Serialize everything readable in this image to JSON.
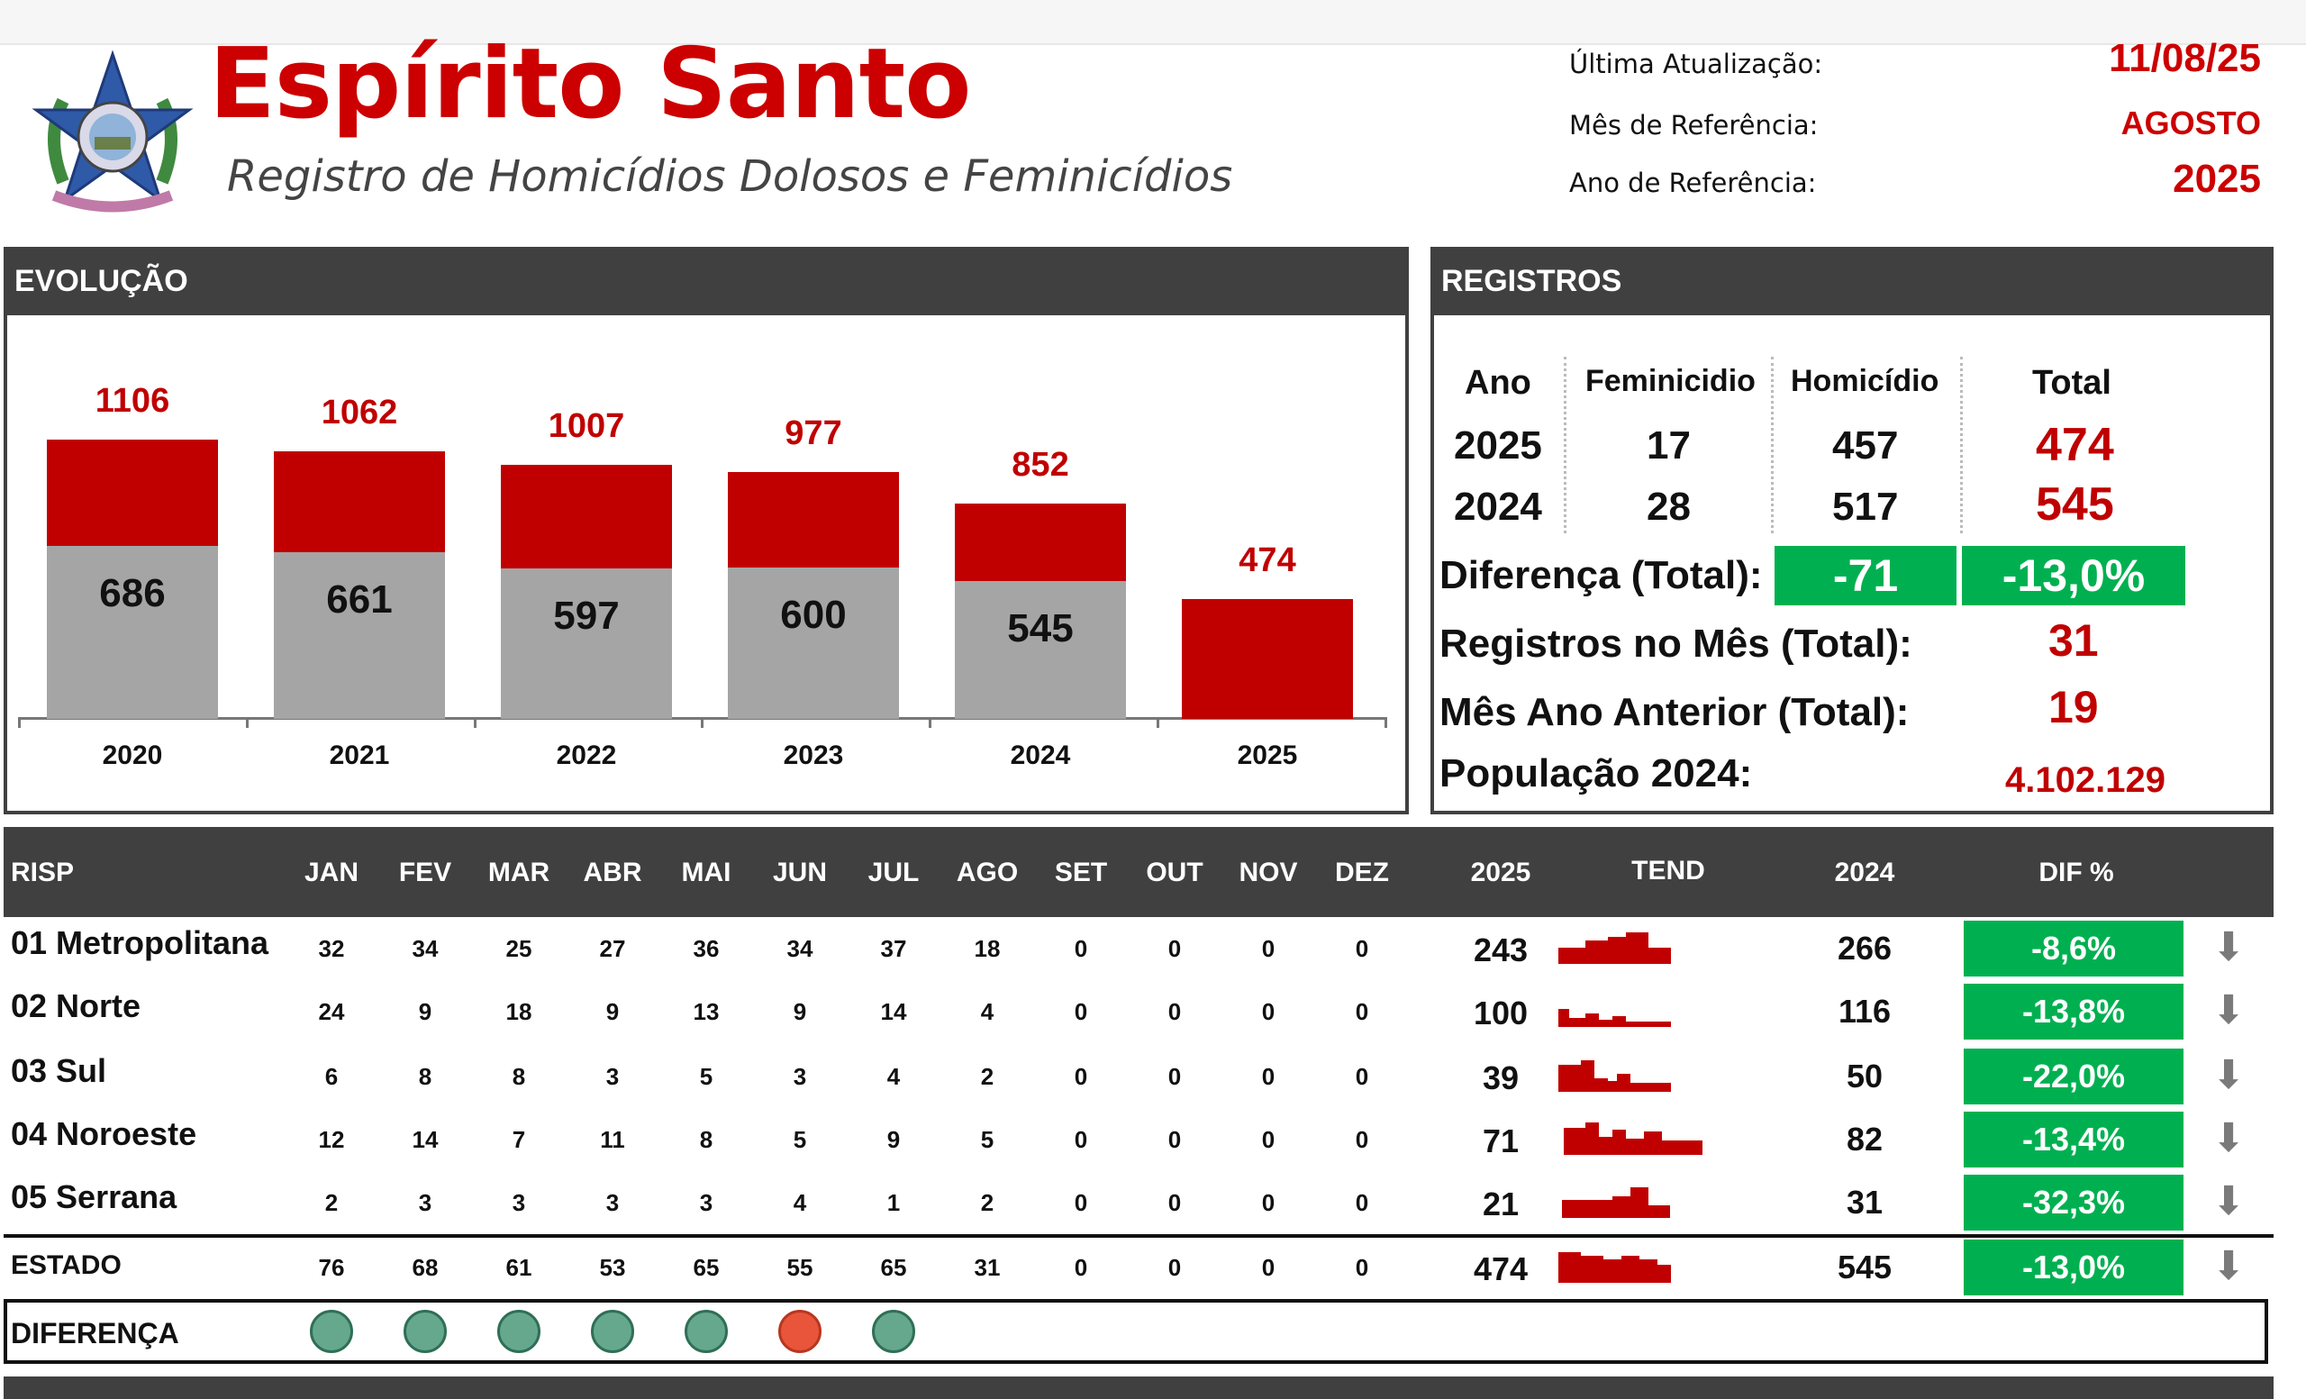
{
  "header": {
    "title": "Espírito Santo",
    "subtitle": "Registro de Homicídios Dolosos e Feminicídios",
    "meta": [
      {
        "label": "Última Atualização:",
        "value": "11/08/25"
      },
      {
        "label": "Mês de Referência:",
        "value": "AGOSTO"
      },
      {
        "label": "Ano de Referência:",
        "value": "2025"
      }
    ]
  },
  "evolucao": {
    "heading": "EVOLUÇÃO"
  },
  "chart_data": {
    "type": "bar",
    "stacked": true,
    "categories": [
      "2020",
      "2021",
      "2022",
      "2023",
      "2024",
      "2025"
    ],
    "series": [
      {
        "values": [
          686,
          661,
          597,
          600,
          545,
          null
        ],
        "color": "#a5a5a5"
      },
      {
        "values": [
          420,
          401,
          410,
          377,
          307,
          474
        ],
        "color": "#c00000"
      }
    ],
    "totals": [
      1106,
      1062,
      1007,
      977,
      852,
      474
    ],
    "inner_labels": [
      "686",
      "661",
      "597",
      "600",
      "545",
      ""
    ],
    "total_labels": [
      "1106",
      "1062",
      "1007",
      "977",
      "852",
      "474"
    ],
    "ylim": [
      0,
      1300
    ],
    "grid": false,
    "title": "",
    "xlabel": "",
    "ylabel": ""
  },
  "registros": {
    "heading": "REGISTROS",
    "columns": [
      "Ano",
      "Feminicidio",
      "Homicídio",
      "Total"
    ],
    "rows": [
      {
        "ano": "2025",
        "fem": "17",
        "hom": "457",
        "total": "474"
      },
      {
        "ano": "2024",
        "fem": "28",
        "hom": "517",
        "total": "545"
      }
    ],
    "diff_label": "Diferença (Total):",
    "diff_abs": "-71",
    "diff_pct": "-13,0%",
    "mes_label": "Registros no Mês (Total):",
    "mes_val": "31",
    "mes_ant_label": "Mês Ano Anterior (Total):",
    "mes_ant_val": "19",
    "pop_label": "População 2024:",
    "pop_val": "4.102.129"
  },
  "risp": {
    "headers": {
      "name": "RISP",
      "months": [
        "JAN",
        "FEV",
        "MAR",
        "ABR",
        "MAI",
        "JUN",
        "JUL",
        "AGO",
        "SET",
        "OUT",
        "NOV",
        "DEZ"
      ],
      "y2025": "2025",
      "tend": "TEND",
      "y2024": "2024",
      "dif": "DIF %"
    },
    "rows": [
      {
        "name": "01 Metropolitana",
        "m": [
          "32",
          "34",
          "25",
          "27",
          "36",
          "34",
          "37",
          "18",
          "0",
          "0",
          "0",
          "0"
        ],
        "y2025": "243",
        "y2024": "266",
        "dif": "-8,6%"
      },
      {
        "name": "02 Norte",
        "m": [
          "24",
          "9",
          "18",
          "9",
          "13",
          "9",
          "14",
          "4",
          "0",
          "0",
          "0",
          "0"
        ],
        "y2025": "100",
        "y2024": "116",
        "dif": "-13,8%"
      },
      {
        "name": "03 Sul",
        "m": [
          "6",
          "8",
          "8",
          "3",
          "5",
          "3",
          "4",
          "2",
          "0",
          "0",
          "0",
          "0"
        ],
        "y2025": "39",
        "y2024": "50",
        "dif": "-22,0%"
      },
      {
        "name": "04 Noroeste",
        "m": [
          "12",
          "14",
          "7",
          "11",
          "8",
          "5",
          "9",
          "5",
          "0",
          "0",
          "0",
          "0"
        ],
        "y2025": "71",
        "y2024": "82",
        "dif": "-13,4%"
      },
      {
        "name": "05 Serrana",
        "m": [
          "2",
          "3",
          "3",
          "3",
          "3",
          "4",
          "1",
          "2",
          "0",
          "0",
          "0",
          "0"
        ],
        "y2025": "21",
        "y2024": "31",
        "dif": "-32,3%"
      }
    ],
    "estado": {
      "name": "ESTADO",
      "m": [
        "76",
        "68",
        "61",
        "53",
        "65",
        "55",
        "65",
        "31",
        "0",
        "0",
        "0",
        "0"
      ],
      "y2025": "474",
      "y2024": "545",
      "dif": "-13,0%"
    },
    "diferenca": {
      "name": "DIFERENÇA",
      "dots": [
        "good",
        "good",
        "good",
        "good",
        "good",
        "bad",
        "good"
      ]
    },
    "colors": {
      "good": "#66a88e",
      "bad": "#e8553a",
      "arrow": "arrow-down-icon"
    }
  }
}
